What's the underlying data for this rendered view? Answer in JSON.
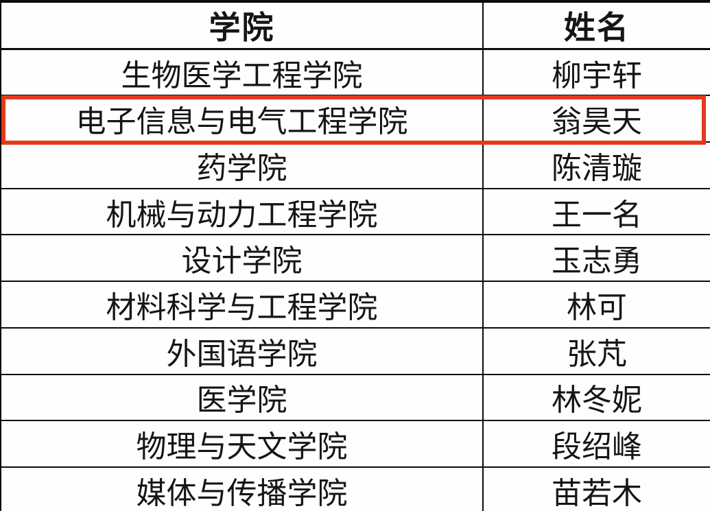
{
  "table": {
    "headers": [
      "学院",
      "姓名"
    ],
    "rows": [
      {
        "college": "生物医学工程学院",
        "name": "柳宇轩",
        "highlighted": false
      },
      {
        "college": "电子信息与电气工程学院",
        "name": "翁昊天",
        "highlighted": true
      },
      {
        "college": "药学院",
        "name": "陈清璇",
        "highlighted": false
      },
      {
        "college": "机械与动力工程学院",
        "name": "王一名",
        "highlighted": false
      },
      {
        "college": "设计学院",
        "name": "玉志勇",
        "highlighted": false
      },
      {
        "college": "材料科学与工程学院",
        "name": "林可",
        "highlighted": false
      },
      {
        "college": "外国语学院",
        "name": "张芃",
        "highlighted": false
      },
      {
        "college": "医学院",
        "name": "林冬妮",
        "highlighted": false
      },
      {
        "college": "物理与天文学院",
        "name": "段绍峰",
        "highlighted": false
      },
      {
        "college": "媒体与传播学院",
        "name": "苗若木",
        "highlighted": false
      }
    ]
  },
  "highlight": {
    "color": "#e5391c"
  }
}
